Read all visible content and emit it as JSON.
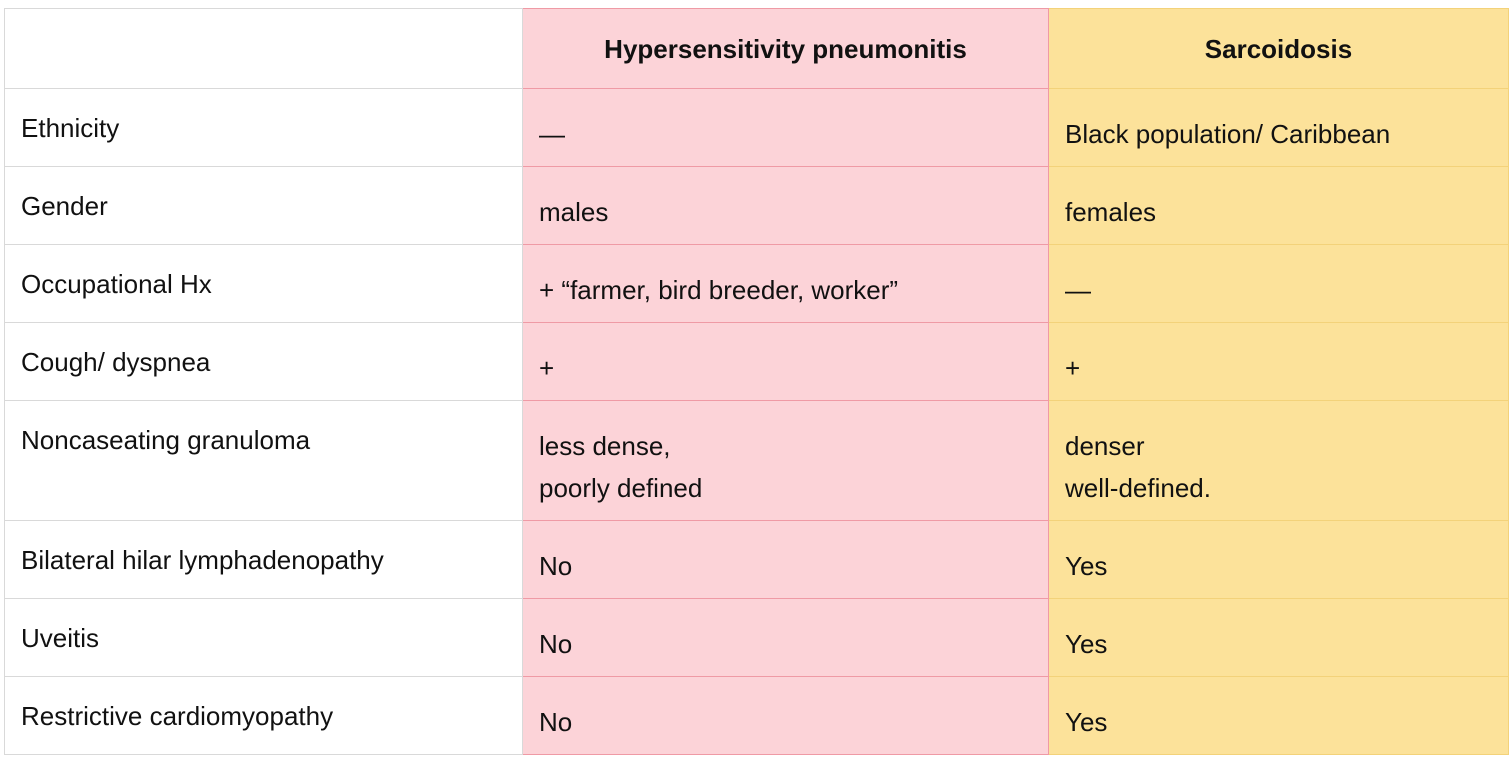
{
  "table": {
    "headers": {
      "feature": "",
      "hp": "Hypersensitivity pneumonitis",
      "sarcoidosis": "Sarcoidosis"
    },
    "rows": [
      {
        "feature": "Ethnicity",
        "hp": "—",
        "sarcoidosis": "Black population/ Caribbean"
      },
      {
        "feature": "Gender",
        "hp": "males",
        "sarcoidosis": "females"
      },
      {
        "feature": "Occupational Hx",
        "hp": "+ “farmer, bird breeder, worker”",
        "sarcoidosis": "—"
      },
      {
        "feature": "Cough/ dyspnea",
        "hp": "+",
        "sarcoidosis": "+"
      },
      {
        "feature": "Noncaseating granuloma",
        "hp_lines": [
          "less dense,",
          "poorly defined"
        ],
        "sarcoidosis_lines": [
          "denser",
          "well-defined."
        ]
      },
      {
        "feature": "Bilateral hilar lymphadenopathy",
        "hp": "No",
        "sarcoidosis": "Yes"
      },
      {
        "feature": "Uveitis",
        "hp": "No",
        "sarcoidosis": "Yes"
      },
      {
        "feature": "Restrictive cardiomyopathy",
        "hp": "No",
        "sarcoidosis": "Yes"
      }
    ]
  },
  "colors": {
    "hp_fill": "#fcd3d8",
    "sarcoidosis_fill": "#fce29a",
    "feature_fill": "#ffffff"
  }
}
